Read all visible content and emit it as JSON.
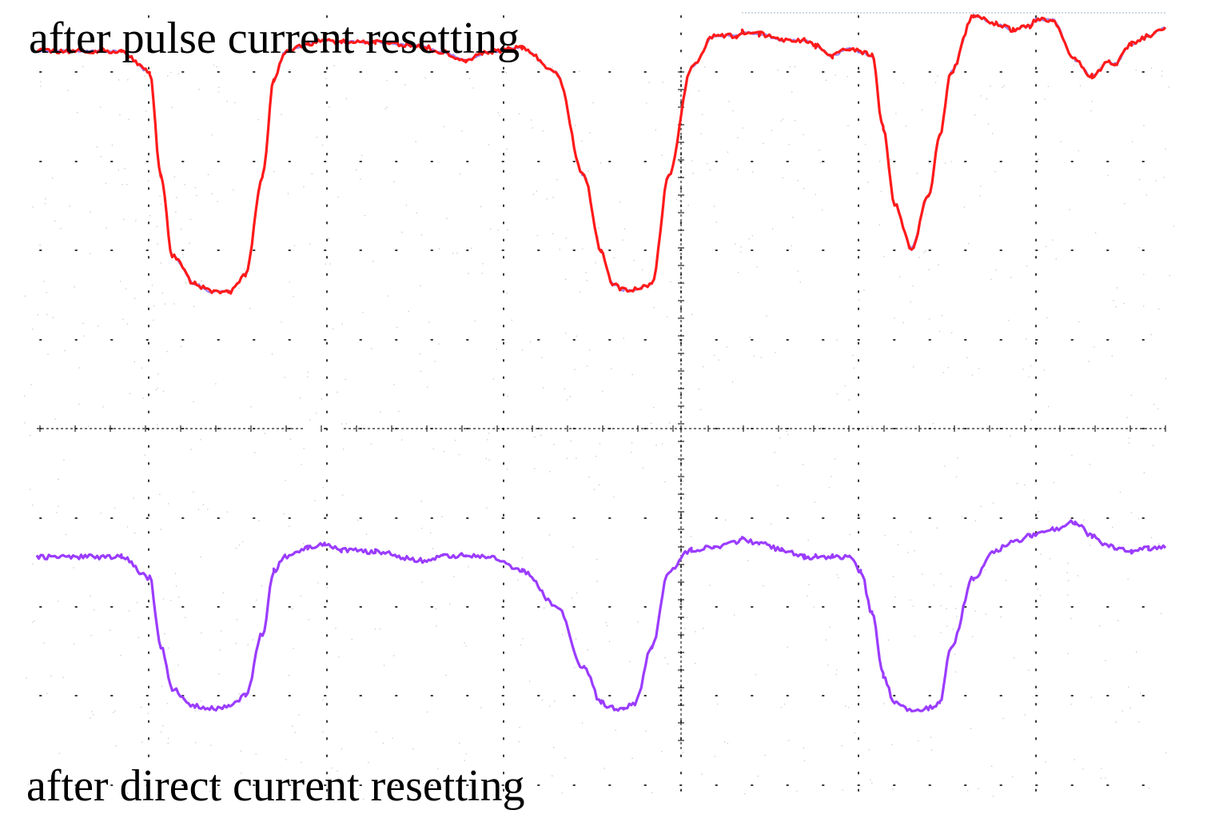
{
  "captions": {
    "top": "after pulse current resetting",
    "bottom": "after direct current resetting"
  },
  "colors": {
    "pulse_trace": "#ff1a1a",
    "pulse_shadow": "#5a2cff",
    "dc_trace": "#9b3cff",
    "grid_dot": "#333333",
    "speckle": "#c8c8c8"
  },
  "chart_data": {
    "type": "line",
    "title": "",
    "xlabel": "",
    "ylabel": "",
    "grid": true,
    "xlim": [
      0,
      1
    ],
    "ylim": [
      0,
      1
    ],
    "series": [
      {
        "name": "after pulse current resetting",
        "x": [
          0,
          0.075,
          0.1,
          0.11,
          0.12,
          0.14,
          0.155,
          0.17,
          0.185,
          0.2,
          0.21,
          0.22,
          0.24,
          0.255,
          0.27,
          0.3,
          0.34,
          0.36,
          0.38,
          0.4,
          0.43,
          0.46,
          0.485,
          0.5,
          0.51,
          0.52,
          0.53,
          0.545,
          0.56,
          0.58,
          0.6,
          0.62,
          0.625,
          0.64,
          0.66,
          0.68,
          0.69,
          0.705,
          0.72,
          0.73,
          0.74,
          0.75,
          0.76,
          0.775,
          0.79,
          0.8,
          0.81,
          0.83,
          0.85,
          0.865,
          0.88,
          0.885,
          0.9,
          0.92,
          0.935,
          0.95,
          0.955,
          0.97,
          0.985,
          1.0
        ],
        "y": [
          0.912,
          0.912,
          0.86,
          0.6,
          0.4,
          0.33,
          0.31,
          0.31,
          0.35,
          0.6,
          0.84,
          0.91,
          0.93,
          0.94,
          0.935,
          0.935,
          0.925,
          0.91,
          0.89,
          0.91,
          0.92,
          0.86,
          0.6,
          0.41,
          0.33,
          0.315,
          0.315,
          0.33,
          0.6,
          0.87,
          0.95,
          0.95,
          0.96,
          0.955,
          0.94,
          0.94,
          0.925,
          0.9,
          0.92,
          0.91,
          0.9,
          0.72,
          0.53,
          0.42,
          0.55,
          0.7,
          0.86,
          1.0,
          0.98,
          0.965,
          0.975,
          0.99,
          0.99,
          0.89,
          0.85,
          0.885,
          0.88,
          0.93,
          0.95,
          0.97
        ]
      },
      {
        "name": "after direct current resetting",
        "x": [
          0,
          0.075,
          0.1,
          0.11,
          0.12,
          0.14,
          0.155,
          0.17,
          0.185,
          0.2,
          0.21,
          0.22,
          0.24,
          0.255,
          0.27,
          0.3,
          0.34,
          0.36,
          0.38,
          0.4,
          0.43,
          0.46,
          0.485,
          0.5,
          0.51,
          0.52,
          0.53,
          0.545,
          0.56,
          0.58,
          0.6,
          0.62,
          0.625,
          0.64,
          0.66,
          0.68,
          0.69,
          0.705,
          0.72,
          0.73,
          0.74,
          0.75,
          0.76,
          0.775,
          0.79,
          0.8,
          0.81,
          0.83,
          0.85,
          0.865,
          0.88,
          0.885,
          0.9,
          0.92,
          0.935,
          0.95,
          0.955,
          0.97,
          0.985,
          1.0
        ],
        "y": [
          0.56,
          0.56,
          0.5,
          0.3,
          0.18,
          0.13,
          0.125,
          0.13,
          0.16,
          0.34,
          0.52,
          0.56,
          0.585,
          0.6,
          0.58,
          0.575,
          0.55,
          0.56,
          0.565,
          0.56,
          0.52,
          0.42,
          0.24,
          0.14,
          0.125,
          0.125,
          0.14,
          0.3,
          0.52,
          0.58,
          0.59,
          0.6,
          0.61,
          0.6,
          0.58,
          0.56,
          0.56,
          0.56,
          0.56,
          0.52,
          0.4,
          0.22,
          0.14,
          0.12,
          0.125,
          0.14,
          0.3,
          0.5,
          0.58,
          0.6,
          0.62,
          0.625,
          0.64,
          0.66,
          0.62,
          0.59,
          0.585,
          0.575,
          0.585,
          0.59
        ]
      }
    ]
  }
}
